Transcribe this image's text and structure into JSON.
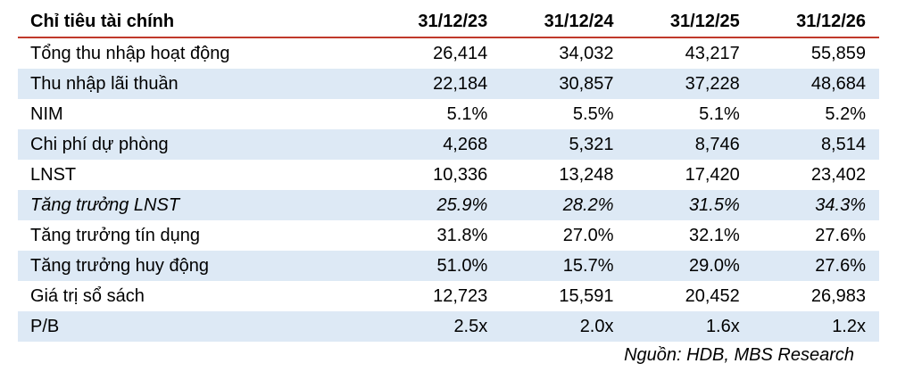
{
  "table": {
    "header": {
      "label": "Chỉ tiêu tài chính",
      "years": [
        "31/12/23",
        "31/12/24",
        "31/12/25",
        "31/12/26"
      ]
    },
    "rows": [
      {
        "label": "Tổng thu nhập hoạt động",
        "values": [
          "26,414",
          "34,032",
          "43,217",
          "55,859"
        ],
        "shaded": false,
        "italic": false
      },
      {
        "label": "Thu nhập lãi thuần",
        "values": [
          "22,184",
          "30,857",
          "37,228",
          "48,684"
        ],
        "shaded": true,
        "italic": false
      },
      {
        "label": "NIM",
        "values": [
          "5.1%",
          "5.5%",
          "5.1%",
          "5.2%"
        ],
        "shaded": false,
        "italic": false
      },
      {
        "label": "Chi phí dự phòng",
        "values": [
          "4,268",
          "5,321",
          "8,746",
          "8,514"
        ],
        "shaded": true,
        "italic": false
      },
      {
        "label": "LNST",
        "values": [
          "10,336",
          "13,248",
          "17,420",
          "23,402"
        ],
        "shaded": false,
        "italic": false
      },
      {
        "label": "Tăng trưởng LNST",
        "values": [
          "25.9%",
          "28.2%",
          "31.5%",
          "34.3%"
        ],
        "shaded": true,
        "italic": true
      },
      {
        "label": "Tăng trưởng tín dụng",
        "values": [
          "31.8%",
          "27.0%",
          "32.1%",
          "27.6%"
        ],
        "shaded": false,
        "italic": false
      },
      {
        "label": "Tăng trưởng huy động",
        "values": [
          "51.0%",
          "15.7%",
          "29.0%",
          "27.6%"
        ],
        "shaded": true,
        "italic": false
      },
      {
        "label": "Giá trị sổ sách",
        "values": [
          "12,723",
          "15,591",
          "20,452",
          "26,983"
        ],
        "shaded": false,
        "italic": false
      },
      {
        "label": "P/B",
        "values": [
          "2.5x",
          "2.0x",
          "1.6x",
          "1.2x"
        ],
        "shaded": true,
        "italic": false
      }
    ]
  },
  "source": "Nguồn: HDB, MBS Research",
  "colors": {
    "header_rule": "#c0392b",
    "row_shade": "#dde9f5"
  }
}
